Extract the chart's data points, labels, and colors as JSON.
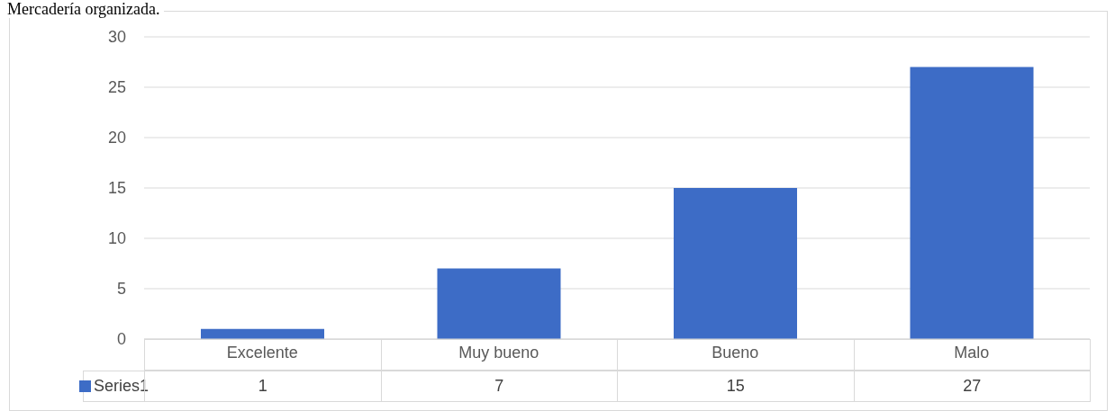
{
  "chart_data": {
    "type": "bar",
    "title": "Mercadería organizada.",
    "categories": [
      "Excelente",
      "Muy bueno",
      "Bueno",
      "Malo"
    ],
    "series": [
      {
        "name": "Series1",
        "color": "#3d6cc6",
        "values": [
          1,
          7,
          15,
          27
        ]
      }
    ],
    "ylim": [
      0,
      30
    ],
    "yticks": [
      0,
      5,
      10,
      15,
      20,
      25,
      30
    ],
    "grid": "y",
    "legend": "bottom",
    "data_labels": true
  }
}
